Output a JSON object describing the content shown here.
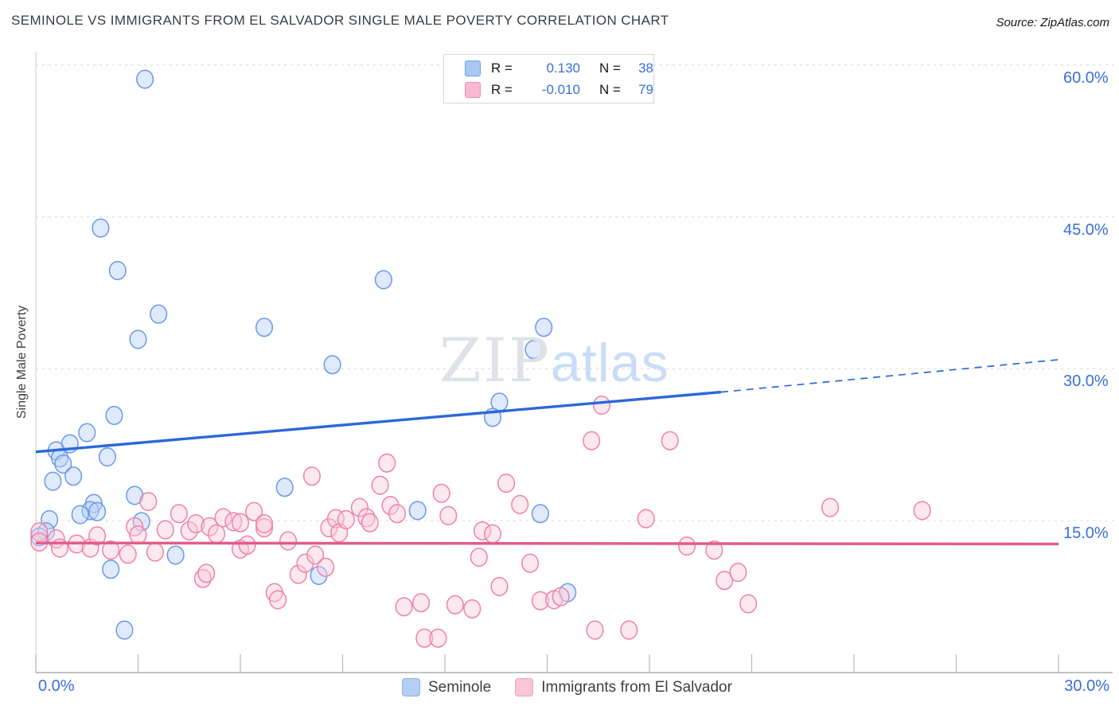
{
  "header": {
    "title": "SEMINOLE VS IMMIGRANTS FROM EL SALVADOR SINGLE MALE POVERTY CORRELATION CHART",
    "source": "Source: ZipAtlas.com"
  },
  "watermark": {
    "zip": "ZIP",
    "atlas": "atlas"
  },
  "stats_legend": {
    "rows": [
      {
        "series": "seminole",
        "r_label": "R =",
        "r_value": "0.130",
        "n_label": "N =",
        "n_value": "38"
      },
      {
        "series": "el-salvador",
        "r_label": "R =",
        "r_value": "-0.010",
        "n_label": "N =",
        "n_value": "79"
      }
    ]
  },
  "bottom_legend": {
    "items": [
      {
        "id": "seminole",
        "label": "Seminole"
      },
      {
        "id": "el-salvador",
        "label": "Immigrants from El Salvador"
      }
    ]
  },
  "axes": {
    "ylabel": "Single Male Poverty",
    "x_left_label": "0.0%",
    "x_right_label": "30.0%"
  },
  "colors": {
    "axis_label_blue": "#3a6fd8",
    "blue_stroke": "#6b98ea",
    "blue_fill": "#b9d1f8",
    "blue_trend": "#2c68d9",
    "pink_stroke": "#ef82a8",
    "pink_fill": "#f8ccdc",
    "pink_trend": "#e25c8a",
    "gridline": "#d9d9d9",
    "axis_line": "#9aa0a6"
  },
  "chart_data": {
    "type": "scatter",
    "title": "Seminole vs Immigrants from El Salvador Single Male Poverty Correlation Chart",
    "xlabel": "",
    "ylabel": "Single Male Poverty",
    "x_range": [
      0,
      30
    ],
    "y_range": [
      0,
      61.3
    ],
    "x_tick_step": 3,
    "y_gridlines": [
      15,
      30,
      45,
      60
    ],
    "y_axis_labels": [
      {
        "value": 60,
        "label": "60.0%"
      },
      {
        "value": 45,
        "label": "45.0%"
      },
      {
        "value": 30,
        "label": "30.0%"
      },
      {
        "value": 15,
        "label": "15.0%"
      }
    ],
    "legend_position": "bottom",
    "grid": true,
    "series": [
      {
        "id": "seminole",
        "name": "Seminole",
        "r": 0.13,
        "n": 38,
        "color": "#6b98ea",
        "fill": "#b9d1f8",
        "points": [
          [
            3.2,
            58.6
          ],
          [
            1.9,
            43.9
          ],
          [
            2.4,
            39.7
          ],
          [
            3.6,
            35.4
          ],
          [
            3.0,
            32.9
          ],
          [
            6.7,
            34.1
          ],
          [
            8.7,
            30.4
          ],
          [
            10.2,
            38.8
          ],
          [
            14.9,
            34.1
          ],
          [
            14.6,
            31.9
          ],
          [
            13.6,
            26.7
          ],
          [
            13.4,
            25.2
          ],
          [
            2.3,
            25.4
          ],
          [
            1.5,
            23.7
          ],
          [
            1.0,
            22.6
          ],
          [
            0.6,
            21.9
          ],
          [
            0.7,
            21.2
          ],
          [
            0.8,
            20.6
          ],
          [
            2.1,
            21.3
          ],
          [
            1.1,
            19.4
          ],
          [
            0.5,
            18.9
          ],
          [
            1.7,
            16.7
          ],
          [
            1.6,
            16.0
          ],
          [
            1.8,
            15.9
          ],
          [
            1.3,
            15.6
          ],
          [
            2.9,
            17.5
          ],
          [
            3.1,
            14.9
          ],
          [
            7.3,
            18.3
          ],
          [
            11.2,
            16.0
          ],
          [
            14.8,
            15.7
          ],
          [
            0.4,
            15.1
          ],
          [
            0.3,
            13.9
          ],
          [
            0.1,
            13.4
          ],
          [
            2.2,
            10.2
          ],
          [
            4.1,
            11.6
          ],
          [
            8.3,
            9.6
          ],
          [
            2.6,
            4.2
          ],
          [
            15.6,
            7.9
          ]
        ]
      },
      {
        "id": "el-salvador",
        "name": "Immigrants from El Salvador",
        "r": -0.01,
        "n": 79,
        "color": "#ef82a8",
        "fill": "#f8ccdc",
        "points": [
          [
            0.1,
            13.9
          ],
          [
            0.1,
            12.9
          ],
          [
            0.6,
            13.2
          ],
          [
            0.7,
            12.3
          ],
          [
            1.2,
            12.7
          ],
          [
            1.6,
            12.3
          ],
          [
            1.8,
            13.5
          ],
          [
            2.2,
            12.1
          ],
          [
            2.7,
            11.7
          ],
          [
            2.9,
            14.4
          ],
          [
            3.0,
            13.6
          ],
          [
            3.5,
            11.9
          ],
          [
            3.3,
            16.9
          ],
          [
            3.8,
            14.1
          ],
          [
            4.2,
            15.7
          ],
          [
            4.5,
            14.0
          ],
          [
            4.7,
            14.7
          ],
          [
            4.9,
            9.3
          ],
          [
            5.1,
            14.4
          ],
          [
            5.3,
            13.7
          ],
          [
            5.0,
            9.8
          ],
          [
            5.5,
            15.3
          ],
          [
            5.8,
            14.9
          ],
          [
            6.0,
            12.2
          ],
          [
            6.0,
            14.8
          ],
          [
            6.2,
            12.6
          ],
          [
            6.4,
            15.9
          ],
          [
            6.7,
            14.3
          ],
          [
            6.7,
            14.7
          ],
          [
            7.0,
            7.9
          ],
          [
            7.1,
            7.2
          ],
          [
            7.4,
            13.0
          ],
          [
            7.7,
            9.7
          ],
          [
            7.9,
            10.8
          ],
          [
            8.1,
            19.4
          ],
          [
            8.2,
            11.6
          ],
          [
            8.5,
            10.4
          ],
          [
            8.6,
            14.3
          ],
          [
            8.8,
            15.2
          ],
          [
            8.9,
            13.8
          ],
          [
            9.1,
            15.1
          ],
          [
            9.5,
            16.3
          ],
          [
            9.7,
            15.3
          ],
          [
            9.8,
            14.8
          ],
          [
            10.1,
            18.5
          ],
          [
            10.3,
            20.7
          ],
          [
            10.4,
            16.5
          ],
          [
            10.6,
            15.7
          ],
          [
            10.8,
            6.5
          ],
          [
            11.3,
            6.9
          ],
          [
            11.4,
            3.4
          ],
          [
            11.8,
            3.4
          ],
          [
            11.9,
            17.7
          ],
          [
            12.1,
            15.5
          ],
          [
            12.3,
            6.7
          ],
          [
            12.8,
            6.3
          ],
          [
            13.0,
            11.4
          ],
          [
            13.1,
            14.0
          ],
          [
            13.4,
            13.7
          ],
          [
            13.6,
            8.5
          ],
          [
            13.8,
            18.7
          ],
          [
            14.2,
            16.6
          ],
          [
            14.5,
            10.8
          ],
          [
            14.8,
            7.1
          ],
          [
            15.2,
            7.2
          ],
          [
            15.4,
            7.5
          ],
          [
            16.4,
            4.2
          ],
          [
            17.4,
            4.2
          ],
          [
            16.6,
            26.4
          ],
          [
            16.3,
            22.9
          ],
          [
            18.6,
            22.9
          ],
          [
            17.9,
            15.2
          ],
          [
            19.1,
            12.5
          ],
          [
            19.9,
            12.1
          ],
          [
            20.2,
            9.1
          ],
          [
            20.6,
            9.9
          ],
          [
            20.9,
            6.8
          ],
          [
            23.3,
            16.3
          ],
          [
            26.0,
            16.0
          ]
        ]
      }
    ],
    "trend_lines": [
      {
        "series": "seminole",
        "color": "#2c68d9",
        "solid": [
          [
            0,
            21.8
          ],
          [
            20.1,
            27.7
          ]
        ],
        "dashed": [
          [
            20.1,
            27.7
          ],
          [
            30,
            30.9
          ]
        ]
      },
      {
        "series": "el-salvador",
        "color": "#e25c8a",
        "solid": [
          [
            0,
            12.8
          ],
          [
            30,
            12.7
          ]
        ]
      }
    ]
  }
}
